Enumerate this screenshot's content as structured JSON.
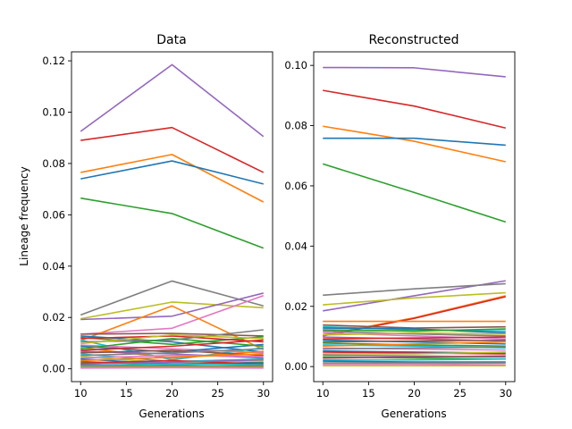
{
  "chart_data": [
    {
      "type": "line",
      "title": "Data",
      "xlabel": "Generations",
      "ylabel": "Lineage frequency",
      "x": [
        10,
        20,
        30
      ],
      "xlim": [
        9,
        31
      ],
      "ylim": [
        -0.005,
        0.1235
      ],
      "xticks": [
        10,
        15,
        20,
        25,
        30
      ],
      "yticks": [
        0.0,
        0.02,
        0.04,
        0.06,
        0.08,
        0.1,
        0.12
      ],
      "ytick_labels": [
        "0.00",
        "0.02",
        "0.04",
        "0.06",
        "0.08",
        "0.10",
        "0.12"
      ],
      "grid": false,
      "series": [
        {
          "color": "#9467bd",
          "values": [
            0.0925,
            0.1185,
            0.0905
          ]
        },
        {
          "color": "#d62728",
          "values": [
            0.089,
            0.094,
            0.0765
          ]
        },
        {
          "color": "#ff7f0e",
          "values": [
            0.0765,
            0.0835,
            0.065
          ]
        },
        {
          "color": "#1f77b4",
          "values": [
            0.074,
            0.081,
            0.072
          ]
        },
        {
          "color": "#2ca02c",
          "values": [
            0.0665,
            0.0605,
            0.047
          ]
        },
        {
          "color": "#7f7f7f",
          "values": [
            0.021,
            0.0342,
            0.0245
          ]
        },
        {
          "color": "#bcbd22",
          "values": [
            0.0195,
            0.026,
            0.0238
          ]
        },
        {
          "color": "#9467bd",
          "values": [
            0.0192,
            0.0205,
            0.0295
          ]
        },
        {
          "color": "#e377c2",
          "values": [
            0.0135,
            0.0158,
            0.0285
          ]
        },
        {
          "color": "#ff7f0e",
          "values": [
            0.011,
            0.0245,
            0.0075
          ]
        },
        {
          "color": "#8c564b",
          "values": [
            0.0135,
            0.0138,
            0.0128
          ]
        },
        {
          "color": "#1f77b4",
          "values": [
            0.0128,
            0.0105,
            0.0065
          ]
        },
        {
          "color": "#2ca02c",
          "values": [
            0.0122,
            0.0095,
            0.0125
          ]
        },
        {
          "color": "#d62728",
          "values": [
            0.0118,
            0.0128,
            0.0105
          ]
        },
        {
          "color": "#17becf",
          "values": [
            0.0112,
            0.0035,
            0.0082
          ]
        },
        {
          "color": "#7f7f7f",
          "values": [
            0.0105,
            0.0112,
            0.0152
          ]
        },
        {
          "color": "#bcbd22",
          "values": [
            0.0098,
            0.0132,
            0.0118
          ]
        },
        {
          "color": "#e377c2",
          "values": [
            0.0092,
            0.0078,
            0.0062
          ]
        },
        {
          "color": "#1f77b4",
          "values": [
            0.0088,
            0.0065,
            0.0095
          ]
        },
        {
          "color": "#ff7f0e",
          "values": [
            0.0082,
            0.0042,
            0.0068
          ]
        },
        {
          "color": "#2ca02c",
          "values": [
            0.0078,
            0.0118,
            0.0088
          ]
        },
        {
          "color": "#d62728",
          "values": [
            0.0072,
            0.0088,
            0.0112
          ]
        },
        {
          "color": "#9467bd",
          "values": [
            0.0068,
            0.0058,
            0.0042
          ]
        },
        {
          "color": "#8c564b",
          "values": [
            0.0062,
            0.0072,
            0.0052
          ]
        },
        {
          "color": "#17becf",
          "values": [
            0.0058,
            0.0028,
            0.0038
          ]
        },
        {
          "color": "#7f7f7f",
          "values": [
            0.0052,
            0.0062,
            0.0078
          ]
        },
        {
          "color": "#bcbd22",
          "values": [
            0.0048,
            0.0022,
            0.0032
          ]
        },
        {
          "color": "#e377c2",
          "values": [
            0.0042,
            0.0052,
            0.0048
          ]
        },
        {
          "color": "#1f77b4",
          "values": [
            0.0038,
            0.0018,
            0.0025
          ]
        },
        {
          "color": "#ff7f0e",
          "values": [
            0.0032,
            0.0045,
            0.0058
          ]
        },
        {
          "color": "#2ca02c",
          "values": [
            0.0028,
            0.0015,
            0.0022
          ]
        },
        {
          "color": "#d62728",
          "values": [
            0.0022,
            0.0032,
            0.0018
          ]
        },
        {
          "color": "#9467bd",
          "values": [
            0.0018,
            0.0025,
            0.0035
          ]
        },
        {
          "color": "#8c564b",
          "values": [
            0.0015,
            0.0008,
            0.0012
          ]
        },
        {
          "color": "#17becf",
          "values": [
            0.0012,
            0.0018,
            0.0015
          ]
        },
        {
          "color": "#7f7f7f",
          "values": [
            0.0008,
            0.0012,
            0.0008
          ]
        },
        {
          "color": "#bcbd22",
          "values": [
            0.0005,
            0.0006,
            0.0005
          ]
        },
        {
          "color": "#e377c2",
          "values": [
            0.0003,
            0.0004,
            0.0003
          ]
        }
      ]
    },
    {
      "type": "line",
      "title": "Reconstructed",
      "xlabel": "Generations",
      "ylabel": "",
      "x": [
        10,
        20,
        30
      ],
      "xlim": [
        9,
        31
      ],
      "ylim": [
        -0.005,
        0.1045
      ],
      "xticks": [
        10,
        15,
        20,
        25,
        30
      ],
      "yticks": [
        0.0,
        0.02,
        0.04,
        0.06,
        0.08,
        0.1
      ],
      "ytick_labels": [
        "0.00",
        "0.02",
        "0.04",
        "0.06",
        "0.08",
        "0.10"
      ],
      "grid": false,
      "series": [
        {
          "color": "#9467bd",
          "values": [
            0.0993,
            0.0992,
            0.0962
          ]
        },
        {
          "color": "#d62728",
          "values": [
            0.0917,
            0.0865,
            0.0792
          ]
        },
        {
          "color": "#ff7f0e",
          "values": [
            0.0798,
            0.0748,
            0.068
          ]
        },
        {
          "color": "#1f77b4",
          "values": [
            0.0758,
            0.0758,
            0.0735
          ]
        },
        {
          "color": "#2ca02c",
          "values": [
            0.0673,
            0.0578,
            0.048
          ]
        },
        {
          "color": "#9467bd",
          "values": [
            0.0185,
            0.0235,
            0.0285
          ]
        },
        {
          "color": "#7f7f7f",
          "values": [
            0.0237,
            0.0258,
            0.0275
          ]
        },
        {
          "color": "#bcbd22",
          "values": [
            0.0205,
            0.0228,
            0.0245
          ]
        },
        {
          "color": "#ff7f0e",
          "values": [
            0.0105,
            0.0162,
            0.0235
          ]
        },
        {
          "color": "#d62728",
          "values": [
            0.0102,
            0.016,
            0.0232
          ]
        },
        {
          "color": "#ff7f0e",
          "values": [
            0.015,
            0.015,
            0.015
          ]
        },
        {
          "color": "#8c564b",
          "values": [
            0.0138,
            0.0128,
            0.0132
          ]
        },
        {
          "color": "#17becf",
          "values": [
            0.0132,
            0.0122,
            0.0118
          ]
        },
        {
          "color": "#1f77b4",
          "values": [
            0.0128,
            0.0125,
            0.0112
          ]
        },
        {
          "color": "#2ca02c",
          "values": [
            0.0122,
            0.0118,
            0.0125
          ]
        },
        {
          "color": "#7f7f7f",
          "values": [
            0.0118,
            0.0108,
            0.0102
          ]
        },
        {
          "color": "#e377c2",
          "values": [
            0.0112,
            0.0102,
            0.0092
          ]
        },
        {
          "color": "#bcbd22",
          "values": [
            0.0105,
            0.0112,
            0.0108
          ]
        },
        {
          "color": "#9467bd",
          "values": [
            0.0098,
            0.0092,
            0.0085
          ]
        },
        {
          "color": "#d62728",
          "values": [
            0.0092,
            0.0095,
            0.0098
          ]
        },
        {
          "color": "#1f77b4",
          "values": [
            0.0088,
            0.0082,
            0.0075
          ]
        },
        {
          "color": "#8c564b",
          "values": [
            0.0082,
            0.0085,
            0.0088
          ]
        },
        {
          "color": "#2ca02c",
          "values": [
            0.0078,
            0.0072,
            0.0068
          ]
        },
        {
          "color": "#17becf",
          "values": [
            0.0072,
            0.0068,
            0.0062
          ]
        },
        {
          "color": "#ff7f0e",
          "values": [
            0.0068,
            0.0075,
            0.0082
          ]
        },
        {
          "color": "#e377c2",
          "values": [
            0.0062,
            0.0058,
            0.0055
          ]
        },
        {
          "color": "#7f7f7f",
          "values": [
            0.0058,
            0.0062,
            0.0065
          ]
        },
        {
          "color": "#1f77b4",
          "values": [
            0.0052,
            0.0048,
            0.0045
          ]
        },
        {
          "color": "#d62728",
          "values": [
            0.0048,
            0.0045,
            0.0042
          ]
        },
        {
          "color": "#bcbd22",
          "values": [
            0.0042,
            0.0042,
            0.0048
          ]
        },
        {
          "color": "#9467bd",
          "values": [
            0.0038,
            0.0035,
            0.0032
          ]
        },
        {
          "color": "#2ca02c",
          "values": [
            0.0032,
            0.0028,
            0.0025
          ]
        },
        {
          "color": "#8c564b",
          "values": [
            0.0028,
            0.0032,
            0.0035
          ]
        },
        {
          "color": "#17becf",
          "values": [
            0.0022,
            0.0022,
            0.0025
          ]
        },
        {
          "color": "#1f77b4",
          "values": [
            0.0018,
            0.0015,
            0.0015
          ]
        },
        {
          "color": "#7f7f7f",
          "values": [
            0.0012,
            0.0012,
            0.0012
          ]
        },
        {
          "color": "#e377c2",
          "values": [
            0.0008,
            0.0008,
            0.0006
          ]
        },
        {
          "color": "#bcbd22",
          "values": [
            0.0003,
            0.0003,
            0.0003
          ]
        }
      ]
    }
  ]
}
